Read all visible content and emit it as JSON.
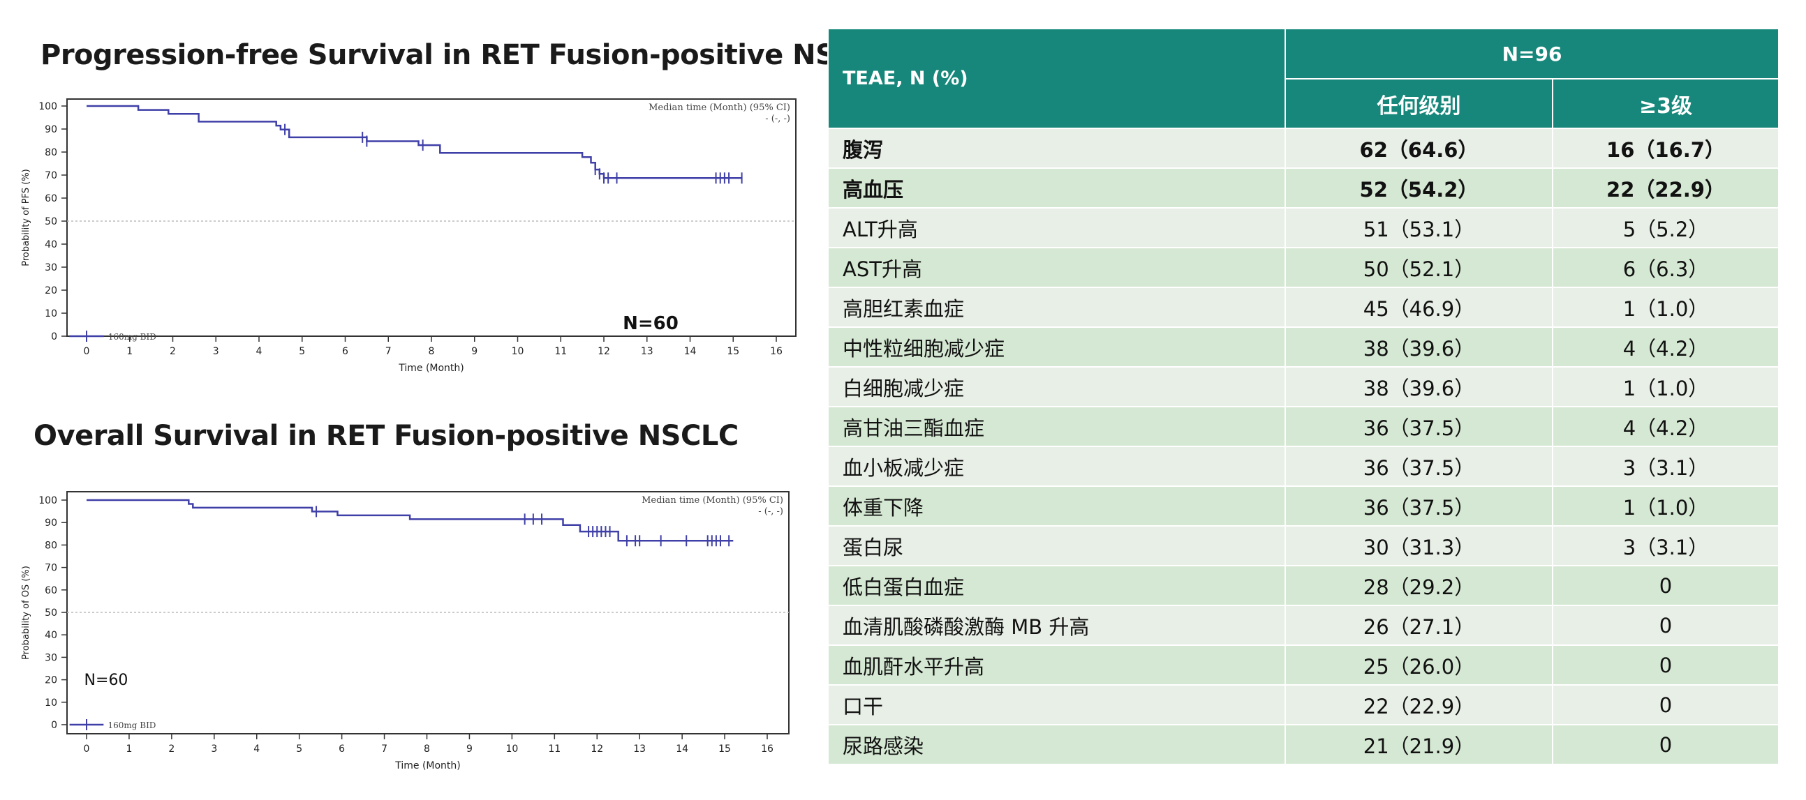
{
  "chart_data": [
    {
      "type": "line",
      "title": "Progression-free Survival in RET Fusion-positive NSCLC",
      "xlabel": "Time (Month)",
      "ylabel": "Probability of PFS (%)",
      "xlim": [
        0,
        16
      ],
      "ylim": [
        0,
        100
      ],
      "x_ticks": [
        0,
        1,
        2,
        3,
        4,
        5,
        6,
        7,
        8,
        9,
        10,
        11,
        12,
        13,
        14,
        15,
        16
      ],
      "y_ticks": [
        0,
        10,
        20,
        30,
        40,
        50,
        60,
        70,
        80,
        90,
        100
      ],
      "reference_line_y": 50,
      "median_label": [
        "Median time (Month) (95% CI)",
        "- (-, -)"
      ],
      "n_label": "N=60",
      "series": [
        {
          "name": "160mg BID",
          "color": "#3f3fa8",
          "step_points": [
            [
              0,
              100
            ],
            [
              1.2,
              100
            ],
            [
              1.2,
              98.3
            ],
            [
              1.9,
              98.3
            ],
            [
              1.9,
              96.6
            ],
            [
              2.6,
              96.6
            ],
            [
              2.6,
              93.2
            ],
            [
              4.4,
              93.2
            ],
            [
              4.4,
              91.5
            ],
            [
              4.5,
              91.5
            ],
            [
              4.5,
              89.8
            ],
            [
              4.7,
              89.8
            ],
            [
              4.7,
              86.4
            ],
            [
              6.5,
              86.4
            ],
            [
              6.5,
              84.7
            ],
            [
              7.7,
              84.7
            ],
            [
              7.7,
              83.0
            ],
            [
              8.2,
              83.0
            ],
            [
              8.2,
              79.6
            ],
            [
              11.5,
              79.6
            ],
            [
              11.5,
              77.8
            ],
            [
              11.7,
              77.8
            ],
            [
              11.7,
              75.4
            ],
            [
              11.8,
              75.4
            ],
            [
              11.8,
              72.4
            ],
            [
              11.9,
              72.4
            ],
            [
              11.9,
              70.5
            ],
            [
              12.0,
              70.5
            ],
            [
              12.0,
              68.7
            ],
            [
              15.2,
              68.7
            ]
          ],
          "censor_times": [
            4.6,
            6.4,
            6.5,
            7.8,
            11.8,
            11.9,
            12.0,
            12.1,
            12.3,
            14.6,
            14.7,
            14.8,
            14.9,
            15.2
          ]
        }
      ]
    },
    {
      "type": "line",
      "title": "Overall Survival in RET Fusion-positive NSCLC",
      "xlabel": "Time (Month)",
      "ylabel": "Probability of OS (%)",
      "xlim": [
        0,
        16
      ],
      "ylim": [
        0,
        100
      ],
      "x_ticks": [
        0,
        1,
        2,
        3,
        4,
        5,
        6,
        7,
        8,
        9,
        10,
        11,
        12,
        13,
        14,
        15,
        16
      ],
      "y_ticks": [
        0,
        10,
        20,
        30,
        40,
        50,
        60,
        70,
        80,
        90,
        100
      ],
      "reference_line_y": 50,
      "median_label": [
        "Median time (Month) (95% CI)",
        "- (-, -)"
      ],
      "n_label": "N=60",
      "series": [
        {
          "name": "160mg BID",
          "color": "#3f3fa8",
          "step_points": [
            [
              0,
              100
            ],
            [
              2.4,
              100
            ],
            [
              2.4,
              98.3
            ],
            [
              2.5,
              98.3
            ],
            [
              2.5,
              96.6
            ],
            [
              5.3,
              96.6
            ],
            [
              5.3,
              94.9
            ],
            [
              5.9,
              94.9
            ],
            [
              5.9,
              93.2
            ],
            [
              7.6,
              93.2
            ],
            [
              7.6,
              91.5
            ],
            [
              11.2,
              91.5
            ],
            [
              11.2,
              88.9
            ],
            [
              11.6,
              88.9
            ],
            [
              11.6,
              86.0
            ],
            [
              12.5,
              86.0
            ],
            [
              12.5,
              81.9
            ],
            [
              15.2,
              81.9
            ]
          ],
          "censor_times": [
            5.4,
            10.3,
            10.5,
            10.7,
            11.8,
            11.9,
            12.0,
            12.1,
            12.2,
            12.3,
            12.7,
            12.9,
            13.0,
            13.5,
            14.1,
            14.6,
            14.7,
            14.8,
            14.9,
            15.1
          ]
        }
      ]
    },
    {
      "type": "table",
      "header": {
        "col1": "TEAE, N (%)",
        "group": "N=96",
        "col2": "任何级别",
        "col3": "≥3级"
      },
      "rows": [
        {
          "name": "腹泻",
          "any": "62（64.6）",
          "g3": "16（16.7）",
          "bold": true
        },
        {
          "name": "高血压",
          "any": "52（54.2）",
          "g3": "22（22.9）",
          "bold": true
        },
        {
          "name": "ALT升高",
          "any": "51（53.1）",
          "g3": "5（5.2）",
          "bold": false
        },
        {
          "name": "AST升高",
          "any": "50（52.1）",
          "g3": "6（6.3）",
          "bold": false
        },
        {
          "name": "高胆红素血症",
          "any": "45（46.9）",
          "g3": "1（1.0）",
          "bold": false
        },
        {
          "name": "中性粒细胞减少症",
          "any": "38（39.6）",
          "g3": "4（4.2）",
          "bold": false
        },
        {
          "name": "白细胞减少症",
          "any": "38（39.6）",
          "g3": "1（1.0）",
          "bold": false
        },
        {
          "name": "高甘油三酯血症",
          "any": "36（37.5）",
          "g3": "4（4.2）",
          "bold": false
        },
        {
          "name": "血小板减少症",
          "any": "36（37.5）",
          "g3": "3（3.1）",
          "bold": false
        },
        {
          "name": "体重下降",
          "any": "36（37.5）",
          "g3": "1（1.0）",
          "bold": false
        },
        {
          "name": "蛋白尿",
          "any": "30（31.3）",
          "g3": "3（3.1）",
          "bold": false
        },
        {
          "name": "低白蛋白血症",
          "any": "28（29.2）",
          "g3": "0",
          "bold": false
        },
        {
          "name": "血清肌酸磷酸激酶 MB 升高",
          "any": "26（27.1）",
          "g3": "0",
          "bold": false
        },
        {
          "name": "血肌酐水平升高",
          "any": "25（26.0）",
          "g3": "0",
          "bold": false
        },
        {
          "name": "口干",
          "any": "22（22.9）",
          "g3": "0",
          "bold": false
        },
        {
          "name": "尿路感染",
          "any": "21（21.9）",
          "g3": "0",
          "bold": false
        }
      ]
    }
  ]
}
